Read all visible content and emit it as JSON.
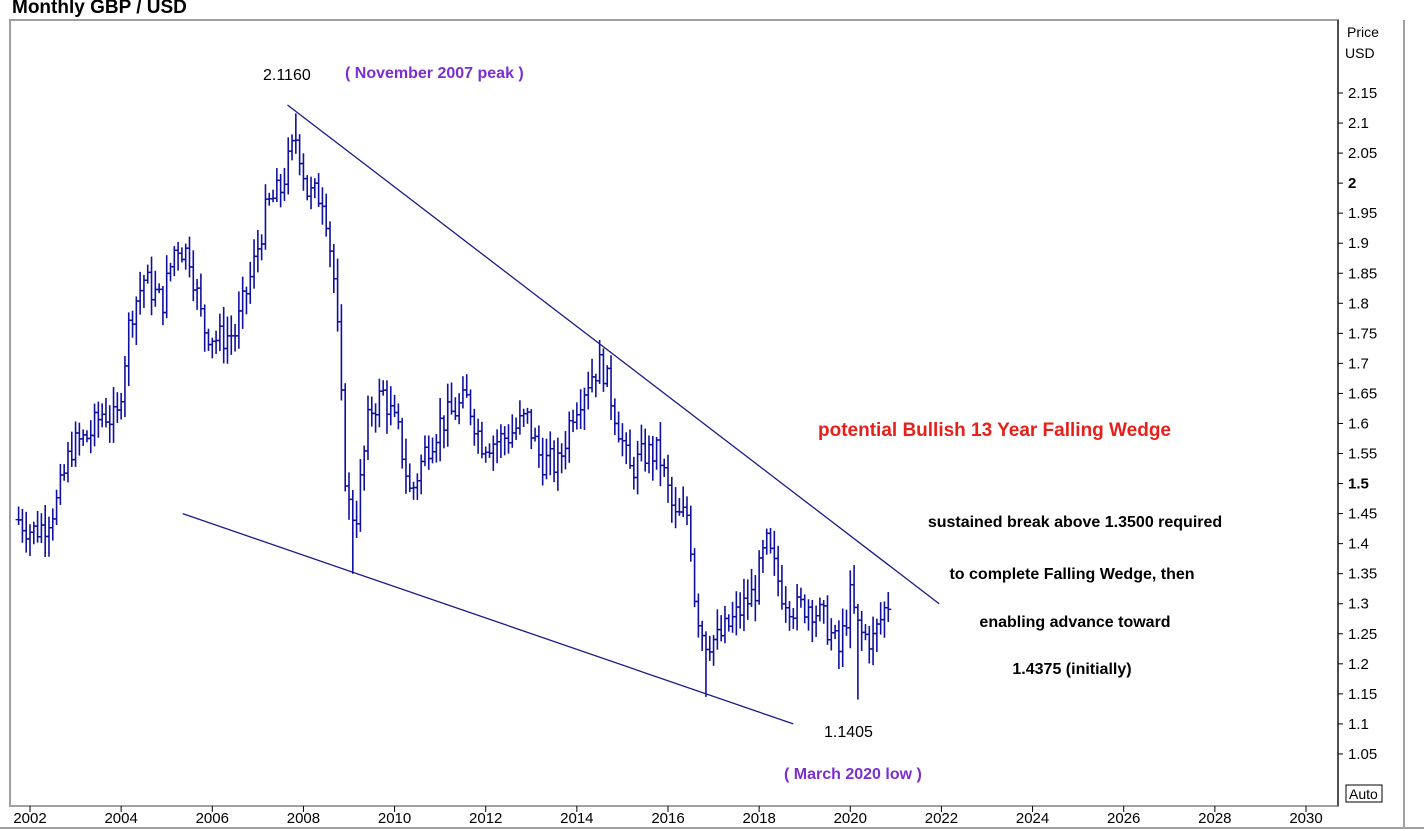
{
  "chart_data": {
    "type": "ohlc",
    "title": "Monthly  GBP / USD",
    "ylabel": [
      "Price",
      "USD"
    ],
    "auto_label": "Auto",
    "colors": {
      "bars": "#1010a0",
      "trendlines": "#1a1a8a",
      "purple": "#7b2fd2",
      "red": "#e8201a"
    },
    "xlim": [
      2001.7,
      2030.8
    ],
    "ylim": [
      1.0,
      2.25
    ],
    "x_ticks": [
      2002,
      2004,
      2006,
      2008,
      2010,
      2012,
      2014,
      2016,
      2018,
      2020,
      2022,
      2024,
      2026,
      2028,
      2030
    ],
    "y_ticks": [
      {
        "v": 1.05,
        "label": "1.05",
        "bold": false
      },
      {
        "v": 1.1,
        "label": "1.1",
        "bold": false
      },
      {
        "v": 1.15,
        "label": "1.15",
        "bold": false
      },
      {
        "v": 1.2,
        "label": "1.2",
        "bold": false
      },
      {
        "v": 1.25,
        "label": "1.25",
        "bold": false
      },
      {
        "v": 1.3,
        "label": "1.3",
        "bold": false
      },
      {
        "v": 1.35,
        "label": "1.35",
        "bold": false
      },
      {
        "v": 1.4,
        "label": "1.4",
        "bold": false
      },
      {
        "v": 1.45,
        "label": "1.45",
        "bold": false
      },
      {
        "v": 1.5,
        "label": "1.5",
        "bold": true
      },
      {
        "v": 1.55,
        "label": "1.55",
        "bold": false
      },
      {
        "v": 1.6,
        "label": "1.6",
        "bold": false
      },
      {
        "v": 1.65,
        "label": "1.65",
        "bold": false
      },
      {
        "v": 1.7,
        "label": "1.7",
        "bold": false
      },
      {
        "v": 1.75,
        "label": "1.75",
        "bold": false
      },
      {
        "v": 1.8,
        "label": "1.8",
        "bold": false
      },
      {
        "v": 1.85,
        "label": "1.85",
        "bold": false
      },
      {
        "v": 1.9,
        "label": "1.9",
        "bold": false
      },
      {
        "v": 1.95,
        "label": "1.95",
        "bold": false
      },
      {
        "v": 2.0,
        "label": "2",
        "bold": true
      },
      {
        "v": 2.05,
        "label": "2.05",
        "bold": false
      },
      {
        "v": 2.1,
        "label": "2.1",
        "bold": false
      },
      {
        "v": 2.15,
        "label": "2.15",
        "bold": false
      }
    ],
    "anchors": [
      [
        2001.75,
        1.44
      ],
      [
        2002.05,
        1.42
      ],
      [
        2002.3,
        1.43
      ],
      [
        2002.6,
        1.47
      ],
      [
        2002.9,
        1.56
      ],
      [
        2003.3,
        1.58
      ],
      [
        2003.6,
        1.62
      ],
      [
        2003.9,
        1.6
      ],
      [
        2004.2,
        1.78
      ],
      [
        2004.5,
        1.84
      ],
      [
        2004.9,
        1.8
      ],
      [
        2005.2,
        1.9
      ],
      [
        2005.5,
        1.88
      ],
      [
        2005.8,
        1.76
      ],
      [
        2006.1,
        1.74
      ],
      [
        2006.5,
        1.75
      ],
      [
        2006.9,
        1.86
      ],
      [
        2007.2,
        1.96
      ],
      [
        2007.5,
        1.99
      ],
      [
        2007.85,
        2.08
      ],
      [
        2008.1,
        1.98
      ],
      [
        2008.45,
        1.98
      ],
      [
        2008.7,
        1.82
      ],
      [
        2008.95,
        1.47
      ],
      [
        2009.15,
        1.44
      ],
      [
        2009.45,
        1.62
      ],
      [
        2009.75,
        1.65
      ],
      [
        2010.1,
        1.58
      ],
      [
        2010.35,
        1.48
      ],
      [
        2010.7,
        1.56
      ],
      [
        2011.0,
        1.6
      ],
      [
        2011.3,
        1.62
      ],
      [
        2011.6,
        1.64
      ],
      [
        2011.9,
        1.57
      ],
      [
        2012.2,
        1.57
      ],
      [
        2012.5,
        1.58
      ],
      [
        2012.9,
        1.61
      ],
      [
        2013.2,
        1.54
      ],
      [
        2013.6,
        1.53
      ],
      [
        2013.9,
        1.62
      ],
      [
        2014.3,
        1.68
      ],
      [
        2014.55,
        1.7
      ],
      [
        2014.9,
        1.6
      ],
      [
        2015.15,
        1.52
      ],
      [
        2015.5,
        1.55
      ],
      [
        2015.8,
        1.55
      ],
      [
        2016.15,
        1.44
      ],
      [
        2016.45,
        1.45
      ],
      [
        2016.6,
        1.3
      ],
      [
        2016.8,
        1.24
      ],
      [
        2017.1,
        1.24
      ],
      [
        2017.5,
        1.28
      ],
      [
        2017.9,
        1.32
      ],
      [
        2018.15,
        1.4
      ],
      [
        2018.5,
        1.32
      ],
      [
        2018.8,
        1.29
      ],
      [
        2019.1,
        1.3
      ],
      [
        2019.45,
        1.27
      ],
      [
        2019.75,
        1.22
      ],
      [
        2020.0,
        1.31
      ],
      [
        2020.2,
        1.25
      ],
      [
        2020.5,
        1.24
      ],
      [
        2020.75,
        1.29
      ],
      [
        2020.9,
        1.31
      ]
    ],
    "spikes": [
      {
        "x": 2016.8,
        "low": 1.145
      },
      {
        "x": 2020.2,
        "low": 1.1405
      },
      {
        "x": 2009.05,
        "low": 1.35
      }
    ],
    "trendlines": [
      {
        "name": "upper",
        "from": [
          2007.65,
          2.13
        ],
        "to": [
          2021.95,
          1.3
        ]
      },
      {
        "name": "lower",
        "from": [
          2005.35,
          1.45
        ],
        "to": [
          2018.75,
          1.1
        ]
      }
    ],
    "annotations": {
      "peak_value": "2.1160",
      "peak_label": "( November 2007 peak )",
      "low_value": "1.1405",
      "low_label": "( March 2020 low )",
      "wedge_title": "potential Bullish 13 Year Falling Wedge",
      "note_lines": [
        "sustained break above 1.3500 required",
        "to complete Falling Wedge, then",
        "enabling advance toward",
        "1.4375 (initially)"
      ]
    }
  }
}
